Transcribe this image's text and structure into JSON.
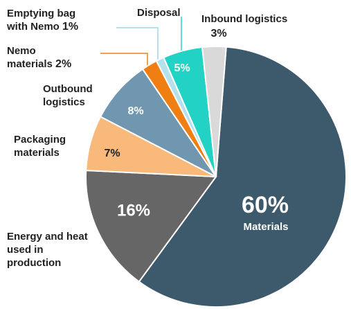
{
  "chart_data": {
    "type": "pie",
    "categories": [
      "Materials",
      "Energy and heat used in production",
      "Packaging materials",
      "Outbound logistics",
      "Nemo materials",
      "Emptying bag with Nemo",
      "Disposal",
      "Inbound logistics"
    ],
    "values": [
      60,
      16,
      7,
      8,
      2,
      1,
      5,
      3
    ],
    "value_labels": [
      "60%",
      "16%",
      "7%",
      "8%",
      "2%",
      "1%",
      "5%",
      "3%"
    ],
    "colors": [
      "#3d5a6c",
      "#666666",
      "#f9b97a",
      "#7096b0",
      "#f07f13",
      "#b5e1ee",
      "#22d3c5",
      "#d9d9d9"
    ]
  }
}
